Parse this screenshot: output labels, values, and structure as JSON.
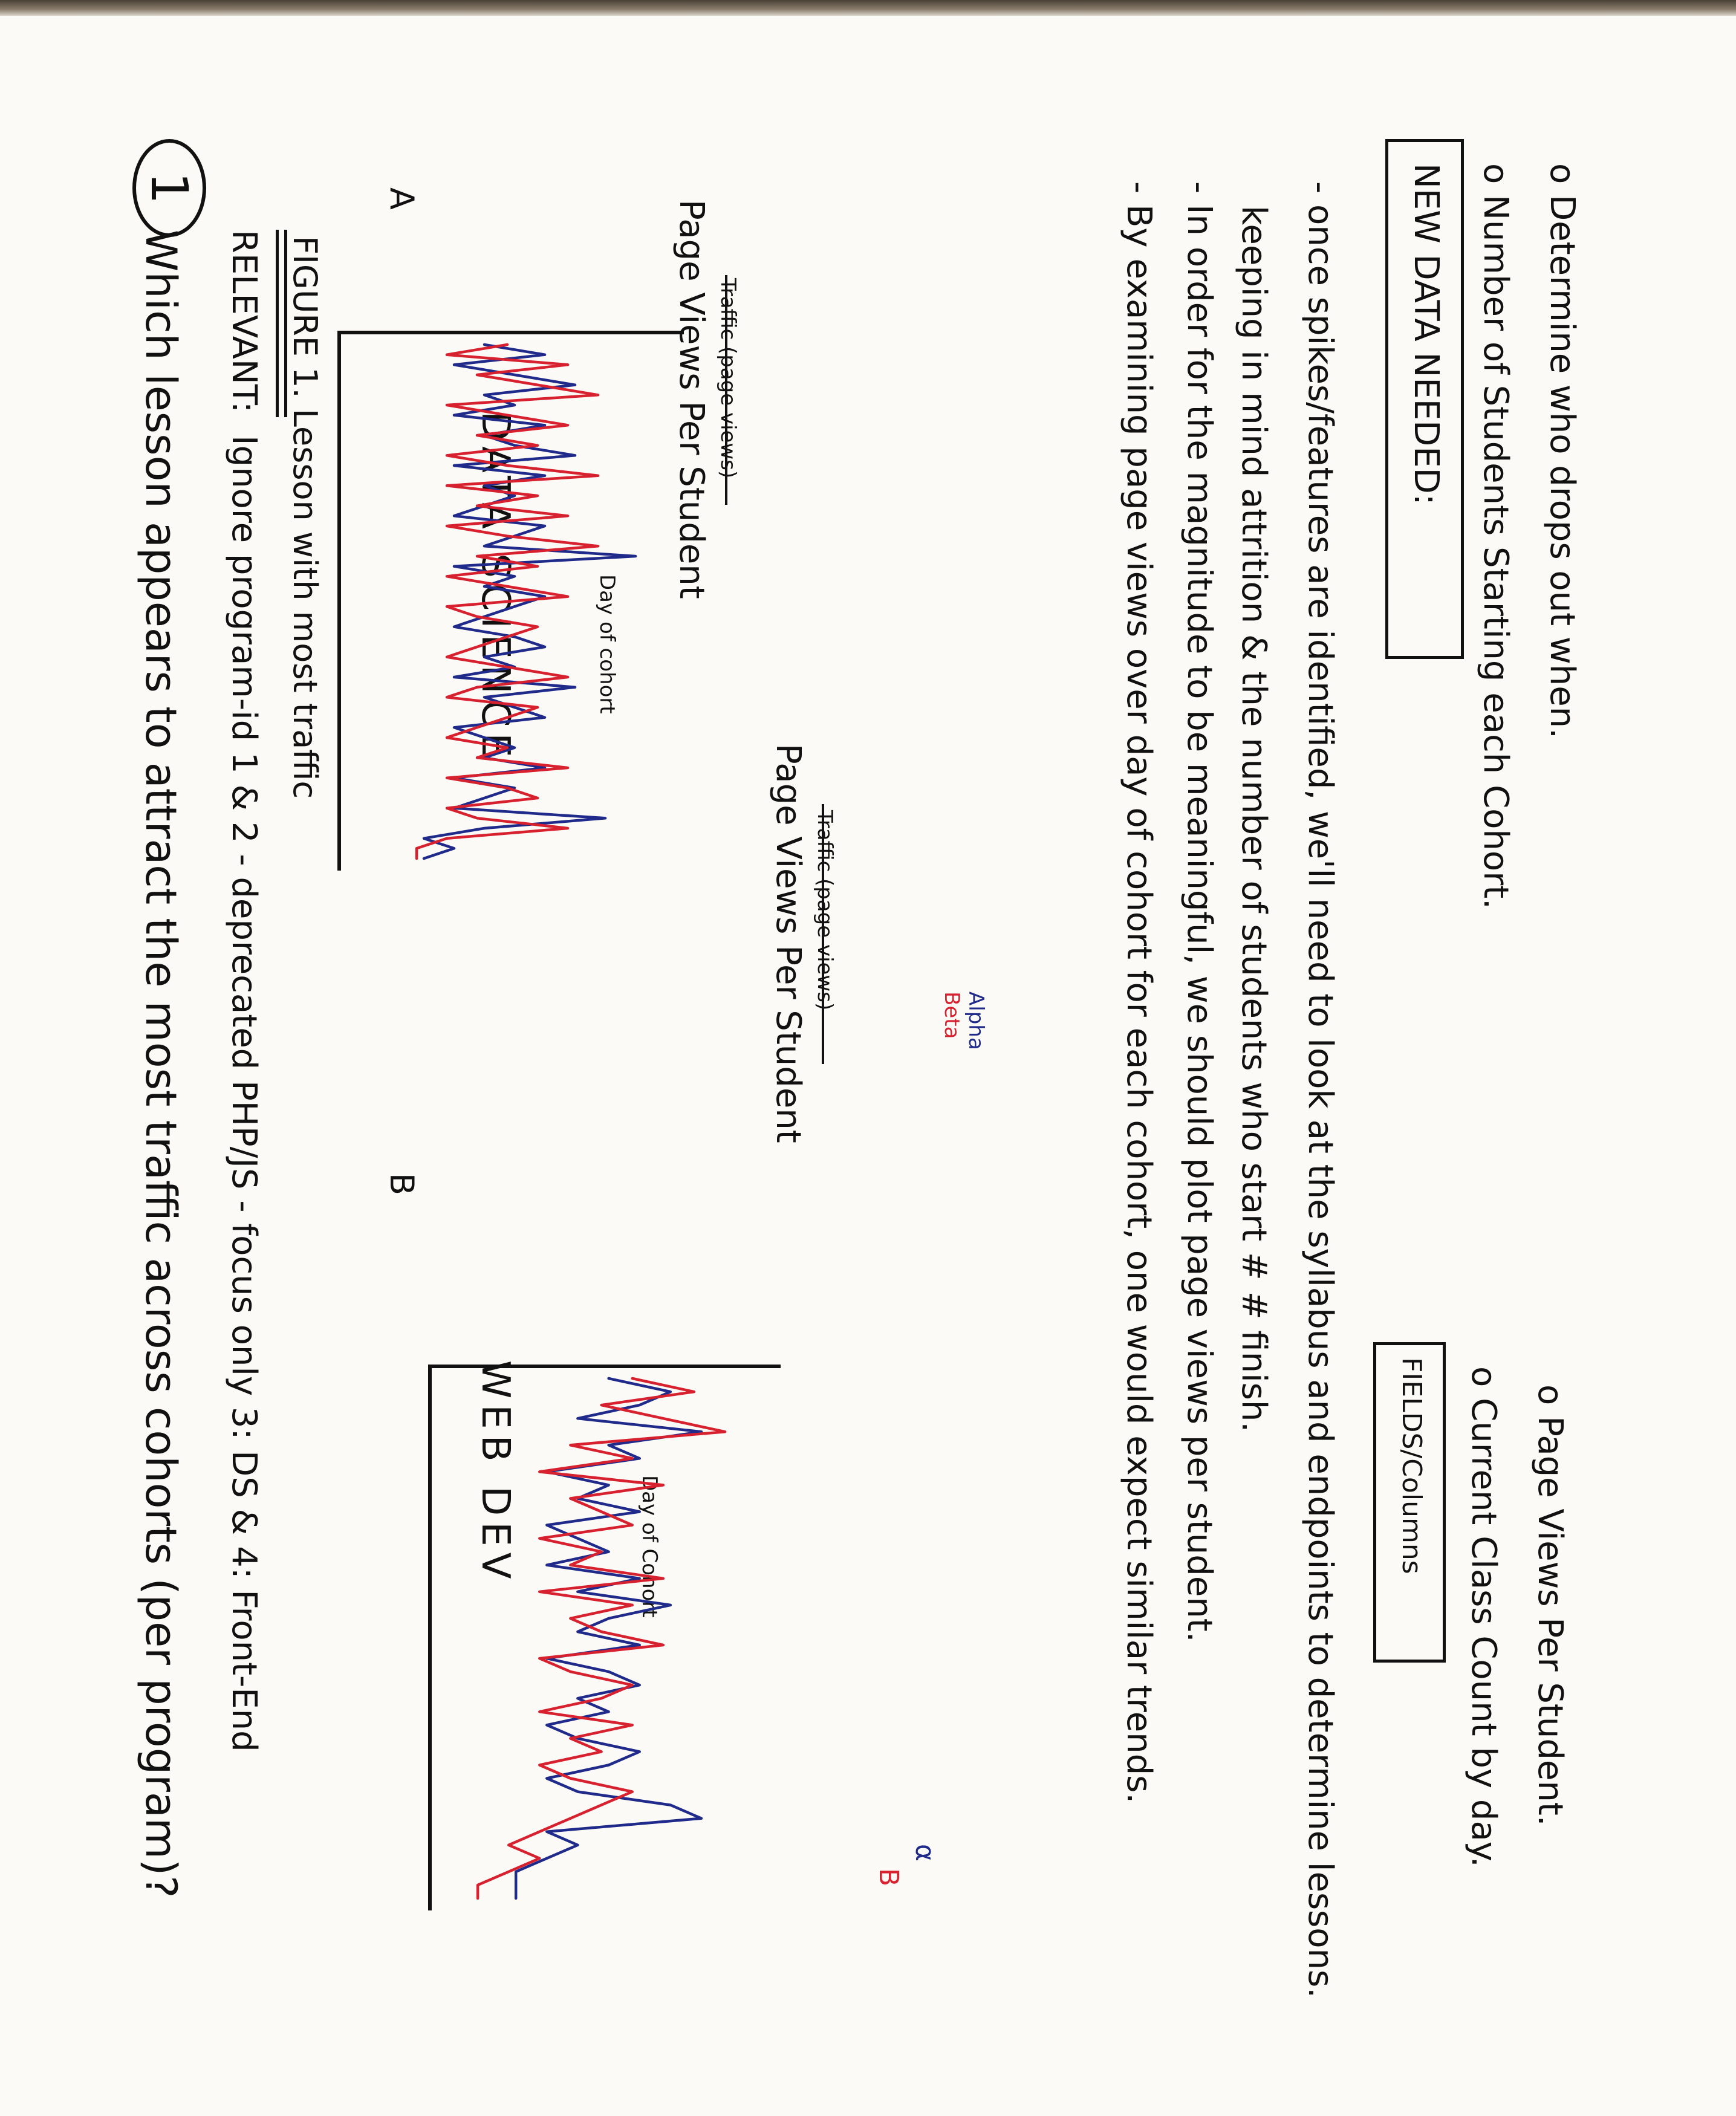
{
  "question": {
    "number": "1",
    "text": "Which lesson appears to attract the most traffic across cohorts (per program)?"
  },
  "relevant": {
    "label": "RELEVANT:",
    "text": "Ignore program-id 1 & 2 - deprecated PHP/JS - focus only 3: DS & 4: Front-End"
  },
  "figure_caption": "FIGURE 1. Lesson with most traffic",
  "sections": {
    "ds_title": "DATA SCIENCE",
    "wd_title": "WEB DEV",
    "panel_a": "A",
    "panel_b": "B"
  },
  "chart_data": [
    {
      "type": "line",
      "panel": "A",
      "title": "Page Views Per Student",
      "struck_title": "Traffic (page views)",
      "xlabel": "Day of cohort",
      "ylabel": "",
      "series": [
        {
          "name": "Alpha",
          "color": "#1f2a8a",
          "values": [
            4,
            6,
            3,
            5,
            7,
            4,
            5,
            3,
            6,
            4,
            5,
            7,
            3,
            6,
            4,
            5,
            4,
            3,
            6,
            5,
            4,
            9,
            3,
            5,
            4,
            6,
            5,
            4,
            3,
            5,
            6,
            4,
            5,
            3,
            7,
            4,
            5,
            6,
            3,
            4,
            5,
            4,
            6,
            3,
            5,
            4,
            3,
            8,
            4,
            2,
            3,
            2
          ]
        },
        {
          "name": "Beta",
          "color": "#d7212f",
          "values": [
            5,
            3,
            7,
            4,
            6,
            8,
            3,
            5,
            7,
            4,
            6,
            3,
            5,
            8,
            3,
            6,
            4,
            7,
            3,
            5,
            8,
            4,
            6,
            3,
            5,
            7,
            3,
            4,
            6,
            5,
            4,
            3,
            5,
            7,
            4,
            3,
            6,
            5,
            4,
            3,
            5,
            4,
            7,
            3,
            5,
            6,
            3,
            4,
            7,
            3,
            2,
            2
          ]
        }
      ]
    },
    {
      "type": "line",
      "panel": "B",
      "title": "Page Views Per Student",
      "struck_title": "Traffic (page views)",
      "xlabel": "Day of Cohort",
      "ylabel": "",
      "series": [
        {
          "name": "α",
          "color": "#1f2a8a",
          "values": [
            5,
            7,
            6,
            4,
            8,
            5,
            6,
            3,
            5,
            4,
            6,
            3,
            4,
            5,
            3,
            6,
            4,
            7,
            5,
            4,
            6,
            3,
            5,
            6,
            4,
            5,
            3,
            4,
            6,
            5,
            3,
            4,
            7,
            8,
            3,
            4,
            3,
            2,
            2,
            2
          ]
        },
        {
          "name": "B",
          "color": "#d7212f",
          "values": [
            6,
            8,
            5,
            7,
            9,
            4,
            6,
            3,
            7,
            4,
            5,
            6,
            3,
            5,
            4,
            7,
            3,
            6,
            4,
            5,
            7,
            3,
            4,
            6,
            5,
            3,
            6,
            4,
            5,
            3,
            4,
            6,
            5,
            4,
            3,
            2,
            3,
            2,
            1,
            1
          ]
        }
      ]
    }
  ],
  "notes": [
    "- By examining page views over day of cohort for each cohort, one would expect similar trends.",
    "- In order for the magnitude to be meaningful, we should plot page views per student.",
    "keeping in mind attrition & the number of students who start # # finish.",
    "- once spikes/features are identified, we'll need to look at the syllabus and endpoints to determine lessons."
  ],
  "new_data": {
    "heading": "NEW DATA NEEDED:",
    "items": [
      "o Number of Students Starting each Cohort.",
      "o Determine who drops out when."
    ]
  },
  "fields": {
    "heading": "FIELDS/Columns",
    "items": [
      "o Current Class Count by day.",
      "o Page Views Per Student."
    ]
  }
}
